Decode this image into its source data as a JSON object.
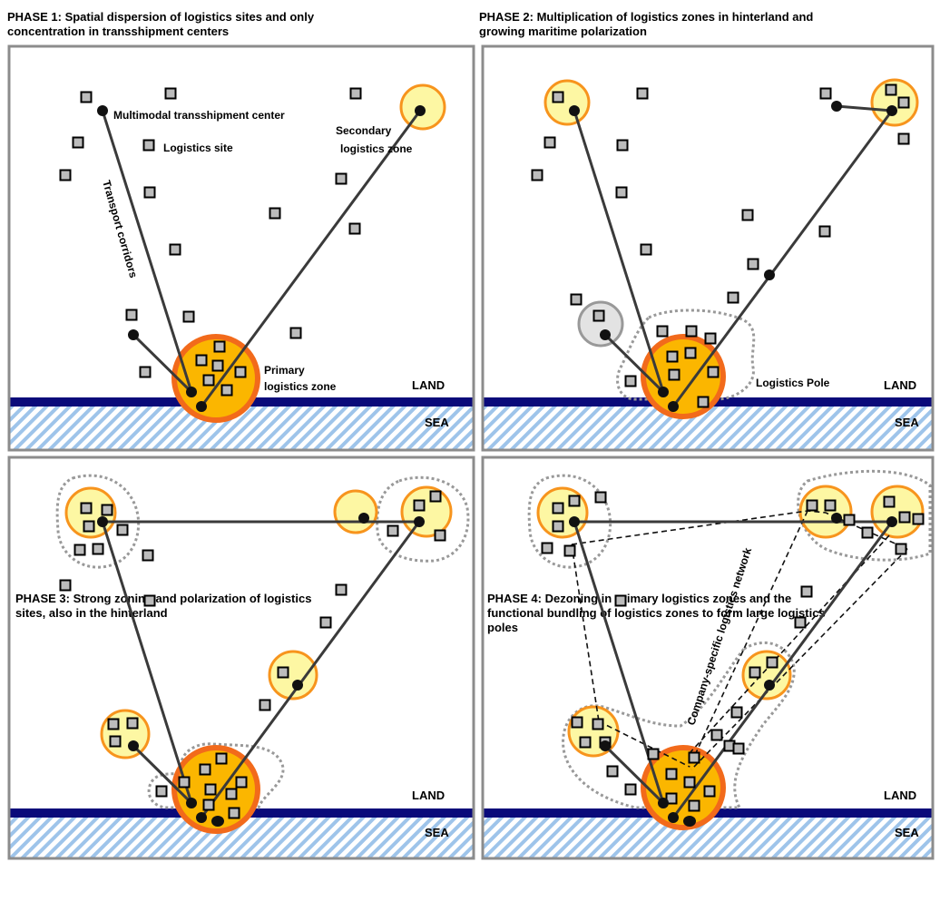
{
  "captions": {
    "phase1": "PHASE 1: Spatial dispersion of logistics sites and only\nconcentration in transshipment centers",
    "phase2": "PHASE 2: Multiplication of logistics zones in hinterland and\ngrowing maritime polarization",
    "phase3": "PHASE 3: Strong zoning and polarization of logistics\nsites, also in the hinterland",
    "phase4": "PHASE 4: Dezoning in primary logistics zones and the\nfunctional bundling of logistics zones to form large logistics\npoles"
  },
  "labels": {
    "multimodal": "Multimodal transshipment center",
    "logistics_site": "Logistics site",
    "transport_corridors": "Transport corridors",
    "secondary_zone_1": "Secondary",
    "secondary_zone_2": "logistics zone",
    "primary_zone_1": "Primary",
    "primary_zone_2": "logistics zone",
    "logistics_pole": "Logistics Pole",
    "company_network": "Company-specific logistics network",
    "land": "LAND",
    "sea": "SEA"
  },
  "colors": {
    "panel_border": "#8c8c8c",
    "coast": "#0a0a7a",
    "sea_stripe": "#9ec4ea",
    "primary_fill": "#fbb600",
    "primary_ring": "#f26a1b",
    "secondary_fill": "#fdf7a3",
    "secondary_ring": "#f7941d",
    "gray_zone_fill": "#e3e3e3",
    "site_fill": "#bcbcbc",
    "corridor": "#3a3a3a",
    "pole_outline": "#999999"
  }
}
